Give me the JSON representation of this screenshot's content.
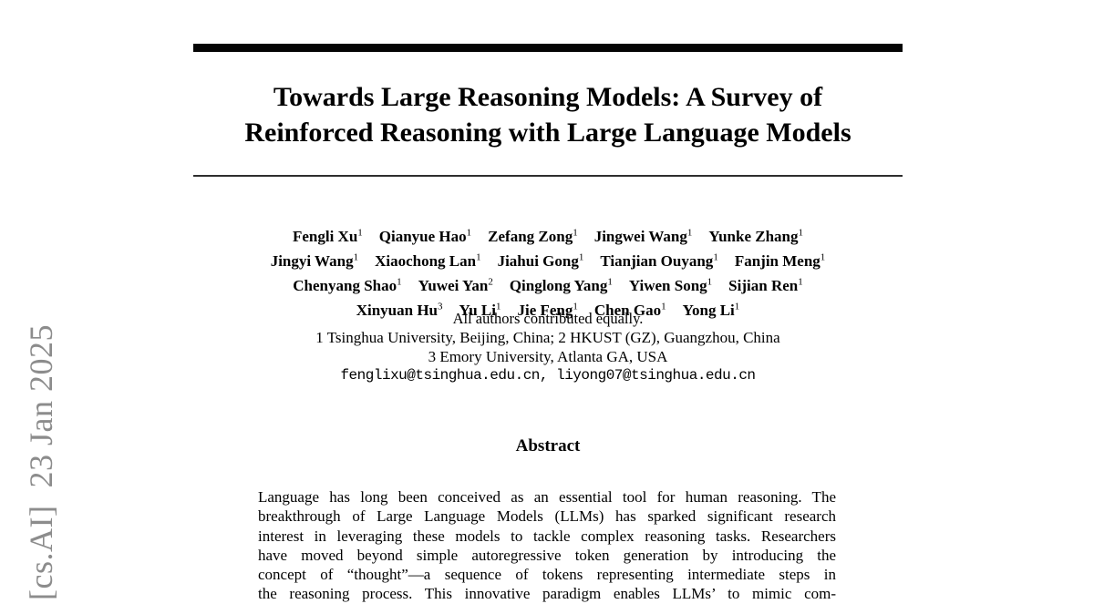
{
  "watermark": {
    "text": "[cs.AI]  23 Jan 2025",
    "color": "#8c8c8c"
  },
  "title": {
    "line1": "Towards Large Reasoning Models: A Survey of",
    "line2": "Reinforced Reasoning with Large Language Models"
  },
  "authors": {
    "lines": [
      [
        {
          "name": "Fengli Xu",
          "sup": "1"
        },
        {
          "name": "Qianyue Hao",
          "sup": "1"
        },
        {
          "name": "Zefang Zong",
          "sup": "1"
        },
        {
          "name": "Jingwei Wang",
          "sup": "1"
        },
        {
          "name": "Yunke Zhang",
          "sup": "1"
        }
      ],
      [
        {
          "name": "Jingyi Wang",
          "sup": "1"
        },
        {
          "name": "Xiaochong Lan",
          "sup": "1"
        },
        {
          "name": "Jiahui Gong",
          "sup": "1"
        },
        {
          "name": "Tianjian Ouyang",
          "sup": "1"
        },
        {
          "name": "Fanjin Meng",
          "sup": "1"
        }
      ],
      [
        {
          "name": "Chenyang Shao",
          "sup": "1"
        },
        {
          "name": "Yuwei Yan",
          "sup": "2"
        },
        {
          "name": "Qinglong Yang",
          "sup": "1"
        },
        {
          "name": "Yiwen Song",
          "sup": "1"
        },
        {
          "name": "Sijian Ren",
          "sup": "1"
        }
      ],
      [
        {
          "name": "Xinyuan Hu",
          "sup": "3"
        },
        {
          "name": "Yu Li",
          "sup": "1"
        },
        {
          "name": "Jie Feng",
          "sup": "1"
        },
        {
          "name": "Chen Gao",
          "sup": "1"
        },
        {
          "name": "Yong Li",
          "sup": "1"
        }
      ]
    ],
    "contribution_note": "All authors contributed equally.",
    "affiliations": [
      "1 Tsinghua University, Beijing, China; 2 HKUST (GZ), Guangzhou, China",
      "3 Emory University, Atlanta GA, USA"
    ],
    "emails": "fenglixu@tsinghua.edu.cn, liyong07@tsinghua.edu.cn"
  },
  "abstract": {
    "heading": "Abstract",
    "lines": [
      "Language has long been conceived as an essential tool for human reasoning. The",
      "breakthrough of Large Language Models (LLMs) has sparked significant research",
      "interest in leveraging these models to tackle complex reasoning tasks. Researchers",
      "have moved beyond simple autoregressive token generation by introducing the",
      "concept of “thought”—a sequence of tokens representing intermediate steps in",
      "the reasoning process. This innovative paradigm enables LLMs’ to mimic com-"
    ]
  }
}
